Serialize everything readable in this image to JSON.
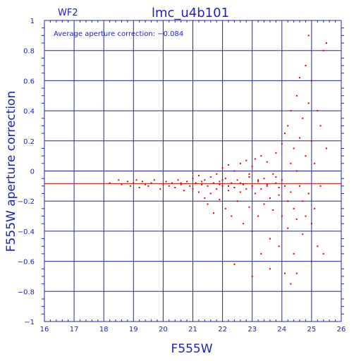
{
  "chart_data": {
    "type": "scatter",
    "title": "lmc_u4b101",
    "panel_label": "WF2",
    "xlabel": "F555W",
    "ylabel": "F555W aperture correction",
    "annotation": "Average aperture correction: −0.084",
    "xlim": [
      16,
      26
    ],
    "ylim": [
      -1,
      1
    ],
    "xticks": [
      16,
      17,
      18,
      19,
      20,
      21,
      22,
      23,
      24,
      25,
      26
    ],
    "yticks": [
      -1,
      -0.8,
      -0.6,
      -0.4,
      -0.2,
      0,
      0.2,
      0.4,
      0.6,
      0.8,
      1
    ],
    "xtick_labels": [
      "16",
      "17",
      "18",
      "19",
      "20",
      "21",
      "22",
      "23",
      "24",
      "25",
      "26"
    ],
    "ytick_labels": [
      "−1",
      "−0.8",
      "−0.6",
      "−0.4",
      "−0.2",
      "0",
      "0.2",
      "0.4",
      "0.6",
      "0.8",
      "1"
    ],
    "grid": true,
    "reference_line": -0.084,
    "colors": {
      "axes": "#2020c0",
      "points": "#e00000",
      "reference_line": "#e00000"
    },
    "points": [
      [
        18.2,
        -0.08
      ],
      [
        18.5,
        -0.06
      ],
      [
        18.6,
        -0.09
      ],
      [
        18.8,
        -0.07
      ],
      [
        18.9,
        -0.1
      ],
      [
        19.0,
        -0.08
      ],
      [
        19.1,
        -0.06
      ],
      [
        19.2,
        -0.11
      ],
      [
        19.3,
        -0.07
      ],
      [
        19.4,
        -0.09
      ],
      [
        19.5,
        -0.1
      ],
      [
        19.6,
        -0.08
      ],
      [
        19.7,
        -0.06
      ],
      [
        19.9,
        -0.12
      ],
      [
        20.0,
        -0.09
      ],
      [
        20.1,
        -0.07
      ],
      [
        20.2,
        -0.1
      ],
      [
        20.3,
        -0.08
      ],
      [
        20.4,
        -0.11
      ],
      [
        20.5,
        -0.06
      ],
      [
        20.6,
        -0.09
      ],
      [
        20.7,
        -0.13
      ],
      [
        20.8,
        -0.07
      ],
      [
        20.9,
        -0.1
      ],
      [
        21.0,
        -0.05
      ],
      [
        21.0,
        -0.12
      ],
      [
        21.1,
        -0.08
      ],
      [
        21.2,
        -0.14
      ],
      [
        21.2,
        -0.03
      ],
      [
        21.3,
        -0.09
      ],
      [
        21.4,
        -0.18
      ],
      [
        21.4,
        -0.06
      ],
      [
        21.5,
        -0.1
      ],
      [
        21.5,
        -0.22
      ],
      [
        21.6,
        -0.04
      ],
      [
        21.6,
        -0.15
      ],
      [
        21.7,
        -0.08
      ],
      [
        21.7,
        -0.28
      ],
      [
        21.8,
        -0.12
      ],
      [
        21.8,
        -0.02
      ],
      [
        21.9,
        -0.07
      ],
      [
        21.9,
        -0.19
      ],
      [
        22.0,
        -0.1
      ],
      [
        22.0,
        0.02
      ],
      [
        22.1,
        -0.05
      ],
      [
        22.1,
        -0.25
      ],
      [
        22.2,
        -0.13
      ],
      [
        22.2,
        0.04
      ],
      [
        22.3,
        -0.08
      ],
      [
        22.3,
        -0.3
      ],
      [
        22.4,
        -0.11
      ],
      [
        22.4,
        0.0
      ],
      [
        22.5,
        -0.06
      ],
      [
        22.5,
        -0.2
      ],
      [
        22.6,
        -0.14
      ],
      [
        22.6,
        0.05
      ],
      [
        22.7,
        -0.09
      ],
      [
        22.7,
        -0.35
      ],
      [
        22.8,
        -0.12
      ],
      [
        22.8,
        0.07
      ],
      [
        22.9,
        -0.04
      ],
      [
        22.9,
        -0.24
      ],
      [
        23.0,
        -0.1
      ],
      [
        23.0,
        0.03
      ],
      [
        23.0,
        -0.4
      ],
      [
        23.1,
        -0.15
      ],
      [
        23.1,
        0.08
      ],
      [
        23.2,
        -0.07
      ],
      [
        23.2,
        -0.3
      ],
      [
        23.3,
        -0.12
      ],
      [
        23.3,
        0.1
      ],
      [
        23.4,
        -0.05
      ],
      [
        23.4,
        -0.22
      ],
      [
        23.5,
        -0.1
      ],
      [
        23.5,
        0.06
      ],
      [
        23.6,
        -0.18
      ],
      [
        23.6,
        -0.45
      ],
      [
        23.7,
        -0.02
      ],
      [
        23.7,
        -0.26
      ],
      [
        23.8,
        -0.08
      ],
      [
        23.8,
        0.12
      ],
      [
        23.9,
        -0.16
      ],
      [
        23.9,
        -0.5
      ],
      [
        24.0,
        -0.06
      ],
      [
        24.0,
        0.18
      ],
      [
        24.0,
        -0.3
      ],
      [
        24.1,
        -0.1
      ],
      [
        24.1,
        0.25
      ],
      [
        24.2,
        -0.2
      ],
      [
        24.2,
        0.3
      ],
      [
        24.2,
        -0.38
      ],
      [
        24.3,
        0.05
      ],
      [
        24.3,
        -0.14
      ],
      [
        24.3,
        0.4
      ],
      [
        24.4,
        -0.25
      ],
      [
        24.4,
        0.15
      ],
      [
        24.4,
        -0.55
      ],
      [
        24.5,
        0.0
      ],
      [
        24.5,
        0.5
      ],
      [
        24.5,
        -0.32
      ],
      [
        24.6,
        0.22
      ],
      [
        24.6,
        -0.1
      ],
      [
        24.6,
        0.62
      ],
      [
        24.7,
        -0.42
      ],
      [
        24.7,
        0.35
      ],
      [
        24.7,
        -0.2
      ],
      [
        24.8,
        0.1
      ],
      [
        24.8,
        0.7
      ],
      [
        24.8,
        -0.3
      ],
      [
        24.9,
        0.45
      ],
      [
        24.9,
        -0.15
      ],
      [
        24.9,
        0.9
      ],
      [
        25.0,
        0.2
      ],
      [
        25.0,
        -0.35
      ],
      [
        25.0,
        0.6
      ],
      [
        25.1,
        0.05
      ],
      [
        25.1,
        -0.25
      ],
      [
        25.2,
        0.4
      ],
      [
        25.2,
        -0.5
      ],
      [
        25.3,
        0.3
      ],
      [
        25.3,
        -0.1
      ],
      [
        25.4,
        0.8
      ],
      [
        25.4,
        -0.55
      ],
      [
        25.5,
        0.15
      ],
      [
        25.5,
        0.85
      ],
      [
        22.4,
        -0.62
      ],
      [
        23.3,
        -0.55
      ],
      [
        23.6,
        -0.65
      ],
      [
        24.1,
        -0.68
      ],
      [
        24.3,
        -0.75
      ],
      [
        24.5,
        -0.68
      ],
      [
        25.0,
        -0.6
      ],
      [
        23.0,
        -0.7
      ],
      [
        22.9,
        -0.02
      ],
      [
        22.6,
        -0.08
      ],
      [
        22.2,
        -0.1
      ],
      [
        21.9,
        -0.09
      ],
      [
        23.2,
        -0.06
      ],
      [
        23.5,
        -0.09
      ],
      [
        23.8,
        -0.04
      ],
      [
        21.3,
        -0.07
      ],
      [
        20.6,
        -0.08
      ],
      [
        22.0,
        -0.06
      ],
      [
        23.9,
        -0.11
      ]
    ]
  }
}
